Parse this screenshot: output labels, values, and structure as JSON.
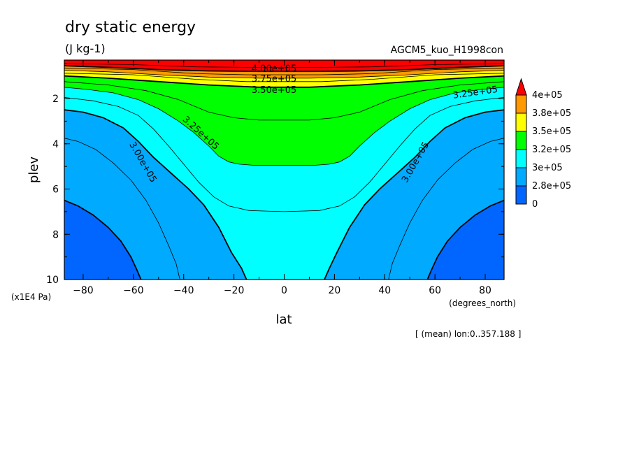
{
  "chart_data": {
    "type": "contour",
    "title": "dry static energy",
    "units": "(J kg-1)",
    "run_label": "AGCM5_kuo_H1998con",
    "xlabel": "lat",
    "xunits": "(degrees_north)",
    "ylabel": "plev",
    "yunits": "(x1E4 Pa)",
    "xlim": [
      -87.5,
      87.5
    ],
    "ylim": [
      10,
      0.3
    ],
    "x_ticks": [
      -80,
      -60,
      -40,
      -20,
      0,
      20,
      40,
      60,
      80
    ],
    "x_tick_labels": [
      "−80",
      "−60",
      "−40",
      "−20",
      "0",
      "20",
      "40",
      "60",
      "80"
    ],
    "y_ticks": [
      2,
      4,
      6,
      8,
      10
    ],
    "y_tick_labels": [
      "2",
      "4",
      "6",
      "8",
      "10"
    ],
    "note": "[ (mean) lon:0..357.188 ]",
    "contour_labels": [
      {
        "text": "4.00e+05",
        "lat": -4,
        "plev": 0.65
      },
      {
        "text": "3.75e+05",
        "lat": -4,
        "plev": 1.1
      },
      {
        "text": "3.50e+05",
        "lat": -4,
        "plev": 1.6
      },
      {
        "text": "3.25e+05",
        "lat": 76,
        "plev": 1.7
      },
      {
        "text": "3.25e+05",
        "lat": -33,
        "plev": 3.5
      },
      {
        "text": "3.00e+05",
        "lat": -56,
        "plev": 4.8
      },
      {
        "text": "3.00e+05",
        "lat": 52,
        "plev": 4.8
      }
    ],
    "legend": {
      "labels": [
        "4e+05",
        "3.8e+05",
        "3.5e+05",
        "3.2e+05",
        "3e+05",
        "2.8e+05",
        "0"
      ],
      "colors": [
        "#ff0000",
        "#ff9900",
        "#ffff00",
        "#00ff00",
        "#00ffff",
        "#00aaff",
        "#0066ff"
      ]
    },
    "fill_levels": [
      {
        "name": "below-2.75e+05",
        "color": "#0066ff"
      },
      {
        "name": "2.75e+05-3.00e+05",
        "color": "#00aaff"
      },
      {
        "name": "3.00e+05-3.25e+05",
        "color": "#00ffff"
      },
      {
        "name": "3.25e+05-3.50e+05",
        "color": "#00ff00"
      },
      {
        "name": "3.50e+05-3.75e+05",
        "color": "#ffff00"
      },
      {
        "name": "3.75e+05-4.00e+05",
        "color": "#ff9900"
      },
      {
        "name": "above-4.00e+05",
        "color": "#ff0000"
      }
    ],
    "boundaries": [
      {
        "name": "2.75e+05",
        "major": true,
        "left": [
          [
            -87.5,
            6.5
          ],
          [
            -82,
            6.75
          ],
          [
            -76,
            7.15
          ],
          [
            -70,
            7.7
          ],
          [
            -65,
            8.3
          ],
          [
            -61,
            9.0
          ],
          [
            -58.5,
            9.6
          ],
          [
            -57,
            10
          ]
        ],
        "right": [
          [
            57,
            10
          ],
          [
            58.5,
            9.6
          ],
          [
            61,
            9.0
          ],
          [
            65,
            8.3
          ],
          [
            70,
            7.7
          ],
          [
            76,
            7.15
          ],
          [
            82,
            6.75
          ],
          [
            87.5,
            6.5
          ]
        ]
      },
      {
        "name": "3.00e+05",
        "major": true,
        "left": [
          [
            -87.5,
            2.5
          ],
          [
            -80,
            2.6
          ],
          [
            -72,
            2.85
          ],
          [
            -64,
            3.3
          ],
          [
            -58,
            3.9
          ],
          [
            -52,
            4.6
          ],
          [
            -45,
            5.3
          ],
          [
            -38,
            6.0
          ],
          [
            -32,
            6.7
          ],
          [
            -26,
            7.7
          ],
          [
            -21,
            8.8
          ],
          [
            -17,
            9.5
          ],
          [
            -15,
            10
          ]
        ],
        "right": [
          [
            16,
            10
          ],
          [
            18,
            9.5
          ],
          [
            21,
            8.8
          ],
          [
            26,
            7.7
          ],
          [
            32,
            6.7
          ],
          [
            38,
            6.0
          ],
          [
            45,
            5.3
          ],
          [
            52,
            4.6
          ],
          [
            58,
            3.9
          ],
          [
            64,
            3.3
          ],
          [
            72,
            2.85
          ],
          [
            80,
            2.6
          ],
          [
            87.5,
            2.5
          ]
        ]
      },
      {
        "name": "3.25e+05",
        "major": false,
        "line": [
          [
            -87.5,
            1.5
          ],
          [
            -78,
            1.6
          ],
          [
            -68,
            1.75
          ],
          [
            -58,
            2.05
          ],
          [
            -50,
            2.45
          ],
          [
            -42,
            3.0
          ],
          [
            -36,
            3.5
          ],
          [
            -30,
            4.1
          ],
          [
            -26,
            4.55
          ],
          [
            -22,
            4.8
          ],
          [
            -18,
            4.9
          ],
          [
            -12,
            4.95
          ],
          [
            0,
            4.95
          ],
          [
            12,
            4.95
          ],
          [
            18,
            4.9
          ],
          [
            22,
            4.8
          ],
          [
            26,
            4.55
          ],
          [
            30,
            4.1
          ],
          [
            36,
            3.5
          ],
          [
            42,
            3.0
          ],
          [
            50,
            2.45
          ],
          [
            58,
            2.05
          ],
          [
            68,
            1.75
          ],
          [
            78,
            1.6
          ],
          [
            87.5,
            1.5
          ]
        ]
      },
      {
        "name": "3.50e+05",
        "major": true,
        "line": [
          [
            -87.5,
            1.0
          ],
          [
            -70,
            1.1
          ],
          [
            -50,
            1.25
          ],
          [
            -30,
            1.4
          ],
          [
            -10,
            1.5
          ],
          [
            0,
            1.5
          ],
          [
            10,
            1.5
          ],
          [
            30,
            1.4
          ],
          [
            50,
            1.25
          ],
          [
            70,
            1.1
          ],
          [
            87.5,
            1.0
          ]
        ]
      },
      {
        "name": "3.75e+05",
        "major": false,
        "line": [
          [
            -87.5,
            0.75
          ],
          [
            -70,
            0.82
          ],
          [
            -50,
            0.95
          ],
          [
            -30,
            1.05
          ],
          [
            -10,
            1.1
          ],
          [
            0,
            1.1
          ],
          [
            10,
            1.1
          ],
          [
            30,
            1.05
          ],
          [
            50,
            0.95
          ],
          [
            70,
            0.82
          ],
          [
            87.5,
            0.75
          ]
        ]
      },
      {
        "name": "4.00e+05",
        "major": true,
        "line": [
          [
            -87.5,
            0.55
          ],
          [
            -70,
            0.62
          ],
          [
            -50,
            0.72
          ],
          [
            -30,
            0.78
          ],
          [
            -10,
            0.8
          ],
          [
            0,
            0.8
          ],
          [
            10,
            0.8
          ],
          [
            30,
            0.78
          ],
          [
            50,
            0.72
          ],
          [
            70,
            0.62
          ],
          [
            87.5,
            0.55
          ]
        ]
      }
    ],
    "minor_contours": [
      {
        "name": "2.875e+05",
        "segments": [
          [
            [
              -87.5,
              3.75
            ],
            [
              -82,
              3.9
            ],
            [
              -75,
              4.25
            ],
            [
              -68,
              4.85
            ],
            [
              -61,
              5.6
            ],
            [
              -55,
              6.5
            ],
            [
              -50,
              7.5
            ],
            [
              -46,
              8.5
            ],
            [
              -43,
              9.3
            ],
            [
              -41.5,
              10
            ]
          ],
          [
            [
              41.5,
              10
            ],
            [
              43,
              9.3
            ],
            [
              46,
              8.5
            ],
            [
              50,
              7.5
            ],
            [
              55,
              6.5
            ],
            [
              61,
              5.6
            ],
            [
              68,
              4.85
            ],
            [
              75,
              4.25
            ],
            [
              82,
              3.9
            ],
            [
              87.5,
              3.75
            ]
          ]
        ]
      },
      {
        "name": "3.125e+05",
        "segments": [
          [
            [
              -87.5,
              1.95
            ],
            [
              -76,
              2.1
            ],
            [
              -66,
              2.35
            ],
            [
              -58,
              2.75
            ],
            [
              -52,
              3.35
            ],
            [
              -46,
              4.1
            ],
            [
              -40,
              4.9
            ],
            [
              -34,
              5.7
            ],
            [
              -28,
              6.35
            ],
            [
              -22,
              6.75
            ],
            [
              -14,
              6.95
            ],
            [
              0,
              7.0
            ],
            [
              14,
              6.95
            ],
            [
              22,
              6.75
            ],
            [
              28,
              6.35
            ],
            [
              34,
              5.7
            ],
            [
              40,
              4.9
            ],
            [
              46,
              4.1
            ],
            [
              52,
              3.35
            ],
            [
              58,
              2.75
            ],
            [
              66,
              2.35
            ],
            [
              76,
              2.1
            ],
            [
              87.5,
              1.95
            ]
          ]
        ]
      },
      {
        "name": "3.375e+05",
        "segments": [
          [
            [
              -87.5,
              1.25
            ],
            [
              -70,
              1.4
            ],
            [
              -55,
              1.65
            ],
            [
              -42,
              2.05
            ],
            [
              -30,
              2.6
            ],
            [
              -20,
              2.85
            ],
            [
              -10,
              2.95
            ],
            [
              0,
              2.95
            ],
            [
              10,
              2.95
            ],
            [
              20,
              2.85
            ],
            [
              30,
              2.6
            ],
            [
              42,
              2.05
            ],
            [
              55,
              1.65
            ],
            [
              70,
              1.4
            ],
            [
              87.5,
              1.25
            ]
          ]
        ]
      },
      {
        "name": "3.625e+05",
        "segments": [
          [
            [
              -87.5,
              0.88
            ],
            [
              -60,
              0.95
            ],
            [
              -35,
              1.15
            ],
            [
              -15,
              1.25
            ],
            [
              0,
              1.25
            ],
            [
              15,
              1.25
            ],
            [
              35,
              1.15
            ],
            [
              60,
              0.95
            ],
            [
              87.5,
              0.88
            ]
          ]
        ]
      },
      {
        "name": "3.875e+05",
        "segments": [
          [
            [
              -87.5,
              0.65
            ],
            [
              -60,
              0.72
            ],
            [
              -35,
              0.9
            ],
            [
              -15,
              0.95
            ],
            [
              0,
              0.95
            ],
            [
              15,
              0.95
            ],
            [
              35,
              0.9
            ],
            [
              60,
              0.72
            ],
            [
              87.5,
              0.65
            ]
          ]
        ]
      },
      {
        "name": "4.125e+05",
        "segments": [
          [
            [
              -87.5,
              0.45
            ],
            [
              -60,
              0.5
            ],
            [
              -35,
              0.6
            ],
            [
              -15,
              0.62
            ],
            [
              0,
              0.62
            ],
            [
              15,
              0.62
            ],
            [
              35,
              0.6
            ],
            [
              60,
              0.5
            ],
            [
              87.5,
              0.45
            ]
          ]
        ]
      }
    ]
  }
}
